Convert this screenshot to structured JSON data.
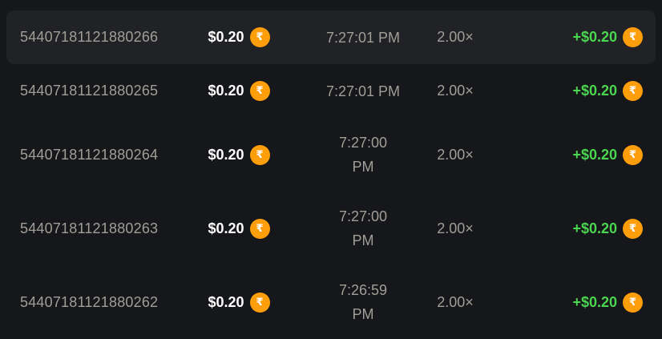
{
  "colors": {
    "background": "#16171a",
    "row_highlight": "#212226",
    "muted_text": "#a29d96",
    "amount_text": "#ffffff",
    "win_green": "#4ad64f",
    "coin_orange": "#ff9e0b"
  },
  "currency": {
    "coin_symbol": "₹",
    "coin_icon": "rupee-coin-icon"
  },
  "bet_history": {
    "rows": [
      {
        "id": "54407181121880266",
        "bet": "$0.20",
        "time_lines": [
          "7:27:01 PM"
        ],
        "multiplier": "2.00×",
        "win": "+$0.20",
        "highlighted": true
      },
      {
        "id": "54407181121880265",
        "bet": "$0.20",
        "time_lines": [
          "7:27:01 PM"
        ],
        "multiplier": "2.00×",
        "win": "+$0.20",
        "highlighted": false
      },
      {
        "id": "54407181121880264",
        "bet": "$0.20",
        "time_lines": [
          "7:27:00",
          "PM"
        ],
        "multiplier": "2.00×",
        "win": "+$0.20",
        "highlighted": false
      },
      {
        "id": "54407181121880263",
        "bet": "$0.20",
        "time_lines": [
          "7:27:00",
          "PM"
        ],
        "multiplier": "2.00×",
        "win": "+$0.20",
        "highlighted": false
      },
      {
        "id": "54407181121880262",
        "bet": "$0.20",
        "time_lines": [
          "7:26:59",
          "PM"
        ],
        "multiplier": "2.00×",
        "win": "+$0.20",
        "highlighted": false
      }
    ]
  }
}
